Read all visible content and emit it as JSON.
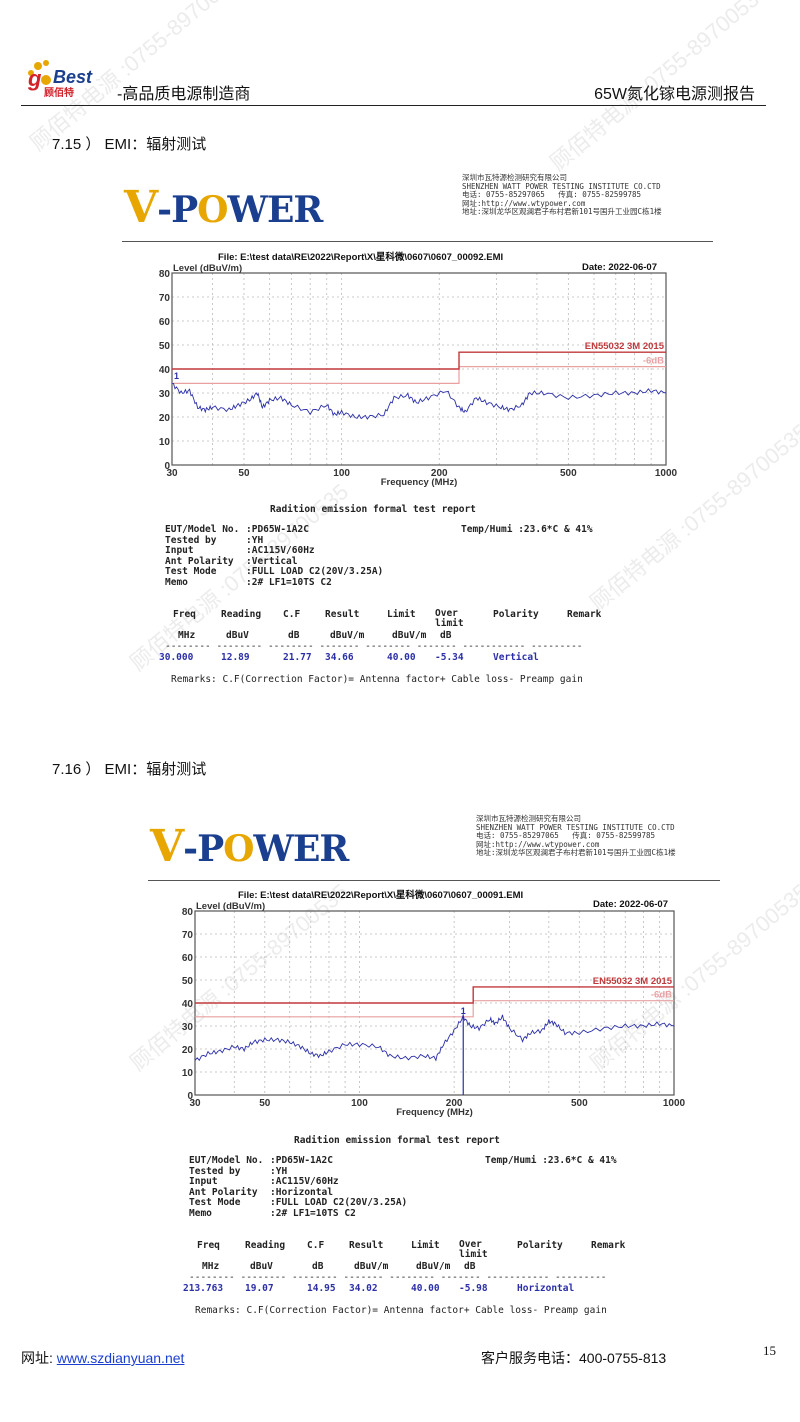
{
  "header": {
    "logo_text": "goBest 顾佰特",
    "subtitle": "-高品质电源制造商",
    "title": "65W氮化镓电源测报告"
  },
  "watermark": "顾佰特电源 :0755-89700535",
  "sections": [
    {
      "title": "7.15 ） EMI：辐射测试",
      "lab": {
        "logo_text": "W-POWER",
        "lines": [
          "深圳市瓦特源检测研究有限公司",
          "SHENZHEN WATT POWER TESTING INSTITUTE CO.CTD",
          "电话: 0755-85297065   传真: 0755-82599785",
          "网址:http://www.wtypower.com",
          "地址:深圳龙华区观澜君子布村君新101号国升工业园C栋1楼"
        ]
      },
      "file": "File: E:\\test data\\RE\\2022\\Report\\X\\星科微\\0607\\0607_00092.EMI",
      "date": "Date: 2022-06-07",
      "report": {
        "title": "Radition emission formal test report",
        "fields": [
          {
            "label": "EUT/Model No.",
            "value": ":PD65W-1A2C"
          },
          {
            "label": "Tested by",
            "value": ":YH"
          },
          {
            "label": "Input",
            "value": ":AC115V/60Hz"
          },
          {
            "label": "Ant Polarity",
            "value": ":Vertical"
          },
          {
            "label": "Test Mode",
            "value": ":FULL LOAD C2(20V/3.25A)"
          },
          {
            "label": "Memo",
            "value": ":2# LF1=10TS C2"
          }
        ],
        "temp_humi": "Temp/Humi :23.6*C & 41%",
        "columns": [
          "Freq",
          "Reading",
          "C.F",
          "Result",
          "Limit",
          "Over limit",
          "Polarity",
          "Remark"
        ],
        "units": [
          "MHz",
          "dBuV",
          "dB",
          "dBuV/m",
          "dBuV/m",
          "dB",
          "",
          ""
        ],
        "rows": [
          [
            "30.000",
            "12.89",
            "21.77",
            "34.66",
            "40.00",
            "-5.34",
            "Vertical",
            ""
          ]
        ],
        "remarks": "Remarks: C.F(Correction Factor)= Antenna factor+ Cable loss- Preamp gain"
      }
    },
    {
      "title": "7.16 ） EMI：辐射测试",
      "lab": {
        "logo_text": "W-POWER",
        "lines": [
          "深圳市瓦特源检测研究有限公司",
          "SHENZHEN WATT POWER TESTING INSTITUTE CO.CTD",
          "电话: 0755-85297065   传真: 0755-82599785",
          "网址:http://www.wtypower.com",
          "地址:深圳龙华区观澜君子布村君新101号国升工业园C栋1楼"
        ]
      },
      "file": "File: E:\\test data\\RE\\2022\\Report\\X\\星科微\\0607\\0607_00091.EMI",
      "date": "Date: 2022-06-07",
      "report": {
        "title": "Radition emission formal test report",
        "fields": [
          {
            "label": "EUT/Model No.",
            "value": ":PD65W-1A2C"
          },
          {
            "label": "Tested by",
            "value": ":YH"
          },
          {
            "label": "Input",
            "value": ":AC115V/60Hz"
          },
          {
            "label": "Ant Polarity",
            "value": ":Horizontal"
          },
          {
            "label": "Test Mode",
            "value": ":FULL LOAD C2(20V/3.25A)"
          },
          {
            "label": "Memo",
            "value": ":2# LF1=10TS C2"
          }
        ],
        "temp_humi": "Temp/Humi :23.6*C & 41%",
        "columns": [
          "Freq",
          "Reading",
          "C.F",
          "Result",
          "Limit",
          "Over limit",
          "Polarity",
          "Remark"
        ],
        "units": [
          "MHz",
          "dBuV",
          "dB",
          "dBuV/m",
          "dBuV/m",
          "dB",
          "",
          ""
        ],
        "rows": [
          [
            "213.763",
            "19.07",
            "14.95",
            "34.02",
            "40.00",
            "-5.98",
            "Horizontal",
            ""
          ]
        ],
        "remarks": "Remarks: C.F(Correction Factor)= Antenna factor+ Cable loss- Preamp gain"
      }
    }
  ],
  "chart_data": [
    {
      "type": "line",
      "xlabel": "Frequency (MHz)",
      "ylabel": "Level (dBuV/m)",
      "xscale": "log",
      "xlim": [
        30,
        1000
      ],
      "ylim": [
        0,
        80
      ],
      "xticks": [
        30,
        50,
        100,
        200,
        500,
        1000
      ],
      "yticks": [
        0,
        10,
        20,
        30,
        40,
        50,
        60,
        70,
        80
      ],
      "grid": true,
      "colors": {
        "trace": "#2b2fa8",
        "limit": "#c0393b",
        "margin": "#e8a0a0"
      },
      "limit": {
        "name": "EN55032 3M 2015",
        "steps": [
          [
            30,
            40
          ],
          [
            230,
            40
          ],
          [
            230,
            47
          ],
          [
            1000,
            47
          ]
        ]
      },
      "margin": {
        "name": "-6dB",
        "steps": [
          [
            30,
            34
          ],
          [
            230,
            34
          ],
          [
            230,
            41
          ],
          [
            1000,
            41
          ]
        ]
      },
      "series": [
        {
          "x": [
            30,
            32,
            34,
            36,
            38,
            40,
            45,
            48,
            52,
            55,
            57,
            60,
            65,
            70,
            80,
            90,
            95,
            100,
            110,
            120,
            135,
            145,
            160,
            170,
            185,
            210,
            230,
            240,
            260,
            280,
            310,
            330,
            360,
            380,
            420,
            500,
            600,
            700,
            800,
            900,
            1000
          ],
          "y": [
            34,
            30,
            31,
            24,
            23,
            24,
            23,
            25,
            27,
            30,
            24,
            27,
            28,
            25,
            22,
            25,
            21,
            22,
            20,
            20,
            21,
            28,
            29,
            26,
            28,
            31,
            24,
            22,
            28,
            26,
            24,
            23,
            25,
            30,
            30,
            28,
            29,
            30,
            30,
            31,
            30
          ]
        }
      ],
      "markers": [
        {
          "label": "1",
          "x": 30,
          "y": 34.66
        }
      ]
    },
    {
      "type": "line",
      "xlabel": "Frequency (MHz)",
      "ylabel": "Level (dBuV/m)",
      "xscale": "log",
      "xlim": [
        30,
        1000
      ],
      "ylim": [
        0,
        80
      ],
      "xticks": [
        30,
        50,
        100,
        200,
        500,
        1000
      ],
      "yticks": [
        0,
        10,
        20,
        30,
        40,
        50,
        60,
        70,
        80
      ],
      "grid": true,
      "colors": {
        "trace": "#2b2fa8",
        "limit": "#c0393b",
        "margin": "#e8a0a0"
      },
      "limit": {
        "name": "EN55032 3M 2015",
        "steps": [
          [
            30,
            40
          ],
          [
            230,
            40
          ],
          [
            230,
            47
          ],
          [
            1000,
            47
          ]
        ]
      },
      "margin": {
        "name": "-6dB",
        "steps": [
          [
            30,
            34
          ],
          [
            230,
            34
          ],
          [
            230,
            41
          ],
          [
            1000,
            41
          ]
        ]
      },
      "series": [
        {
          "x": [
            30,
            33,
            36,
            40,
            43,
            46,
            50,
            55,
            60,
            65,
            70,
            75,
            80,
            90,
            100,
            115,
            125,
            140,
            160,
            175,
            185,
            200,
            213.763,
            225,
            240,
            260,
            270,
            285,
            300,
            330,
            350,
            380,
            400,
            420,
            450,
            500,
            600,
            700,
            800,
            900,
            1000
          ],
          "y": [
            15,
            18,
            19,
            21,
            20,
            23,
            24,
            24,
            23,
            21,
            18,
            17,
            19,
            22,
            22,
            21,
            17,
            16,
            17,
            16,
            22,
            28,
            34,
            30,
            29,
            33,
            31,
            34,
            29,
            24,
            27,
            28,
            32,
            31,
            27,
            27,
            29,
            30,
            30,
            31,
            30
          ]
        }
      ],
      "markers": [
        {
          "label": "1",
          "x": 213.763,
          "y": 34.02,
          "stem": true
        }
      ]
    }
  ],
  "footer": {
    "url_label": "网址: ",
    "url": "www.szdianyuan.net",
    "service": "客户服务电话：400-0755-813",
    "page": "15"
  }
}
